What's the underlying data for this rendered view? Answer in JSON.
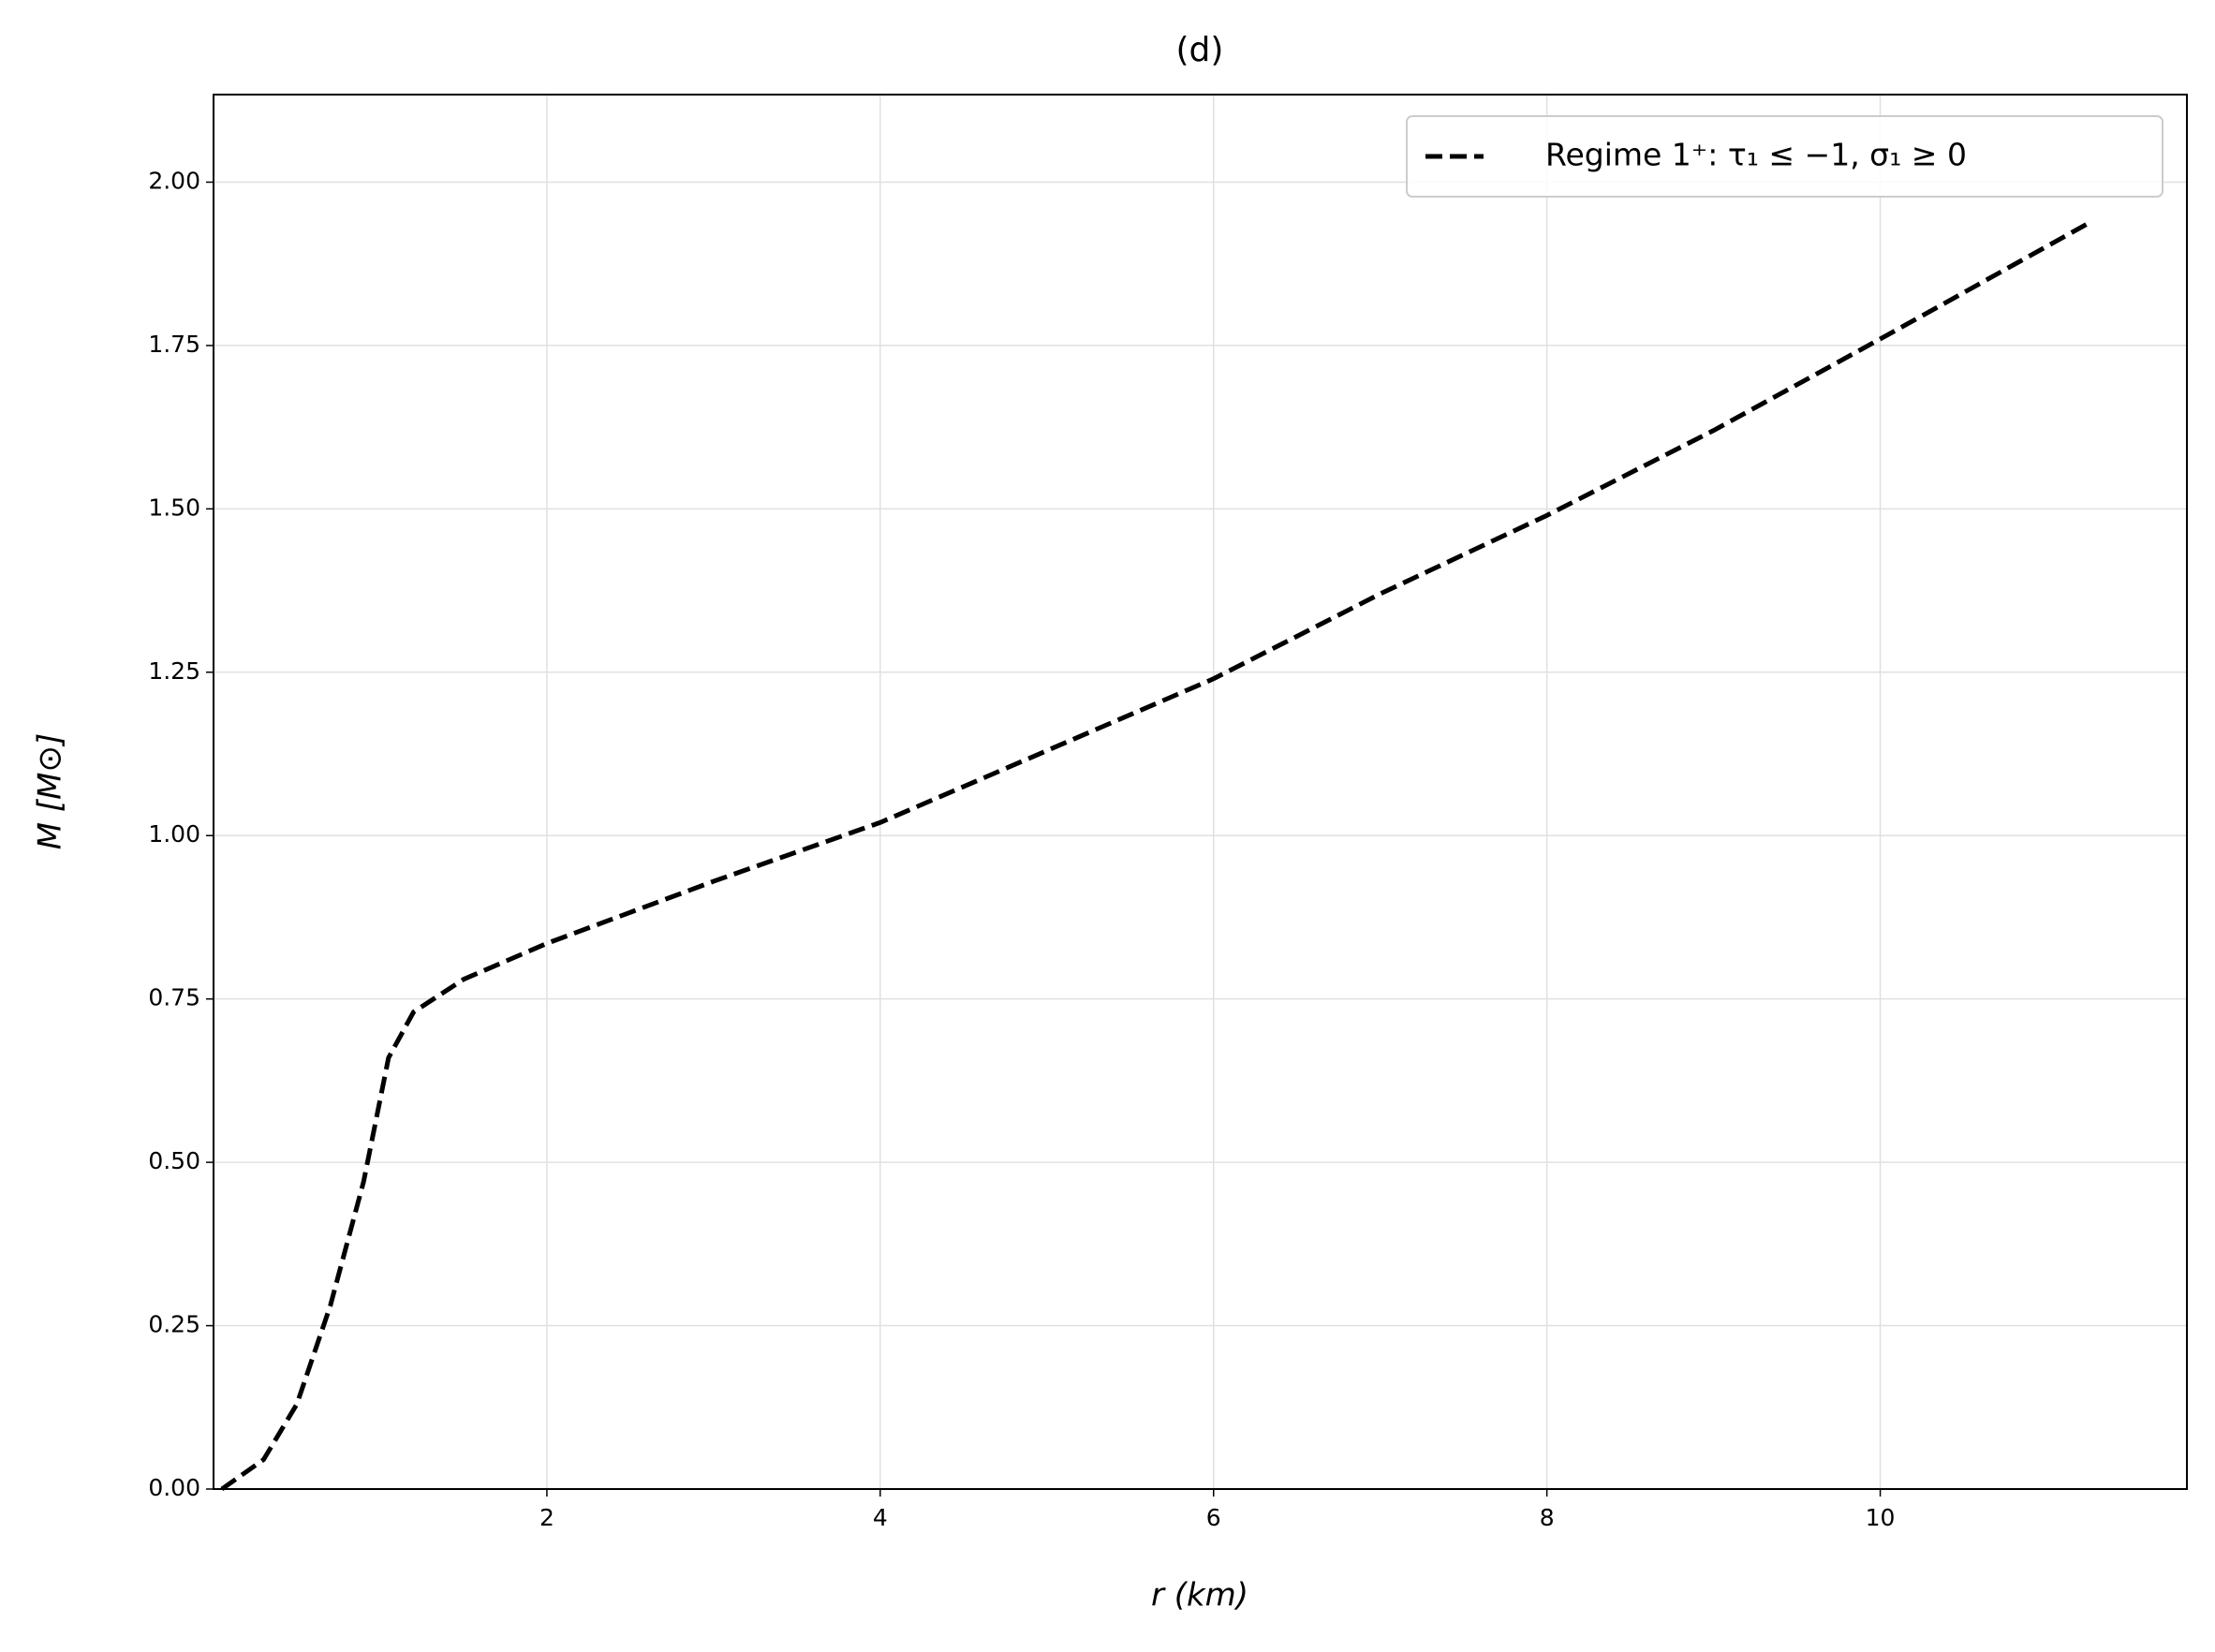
{
  "chart_data": {
    "type": "line",
    "title": "(d)",
    "x_label": "r (km)",
    "y_label": "M [M⊙]",
    "x": [
      0.05,
      0.3,
      0.5,
      0.7,
      0.9,
      1.05,
      1.2,
      1.5,
      2,
      3,
      4,
      5,
      6,
      7,
      8,
      9,
      10,
      11.27
    ],
    "series": [
      {
        "name": "Regime 1⁺: τ₁ ≤ −1, σ₁ ≥ 0",
        "color": "#000000",
        "values": [
          0,
          0.045,
          0.13,
          0.28,
          0.47,
          0.66,
          0.73,
          0.78,
          0.835,
          0.93,
          1.02,
          1.13,
          1.24,
          1.37,
          1.49,
          1.62,
          1.76,
          1.94
        ]
      }
    ],
    "xlim": [
      0,
      11.84
    ],
    "ylim": [
      0,
      2.134
    ],
    "xticks": [
      2,
      4,
      6,
      8,
      10
    ],
    "yticks": [
      {
        "value": 0,
        "label": "0.00"
      },
      {
        "value": 0.25,
        "label": "0.25"
      },
      {
        "value": 0.5,
        "label": "0.50"
      },
      {
        "value": 0.75,
        "label": "0.75"
      },
      {
        "value": 1,
        "label": "1.00"
      },
      {
        "value": 1.25,
        "label": "1.25"
      },
      {
        "value": 1.5,
        "label": "1.50"
      },
      {
        "value": 1.75,
        "label": "1.75"
      },
      {
        "value": 2,
        "label": "2.00"
      }
    ],
    "grid": true,
    "legend": "upper right"
  }
}
